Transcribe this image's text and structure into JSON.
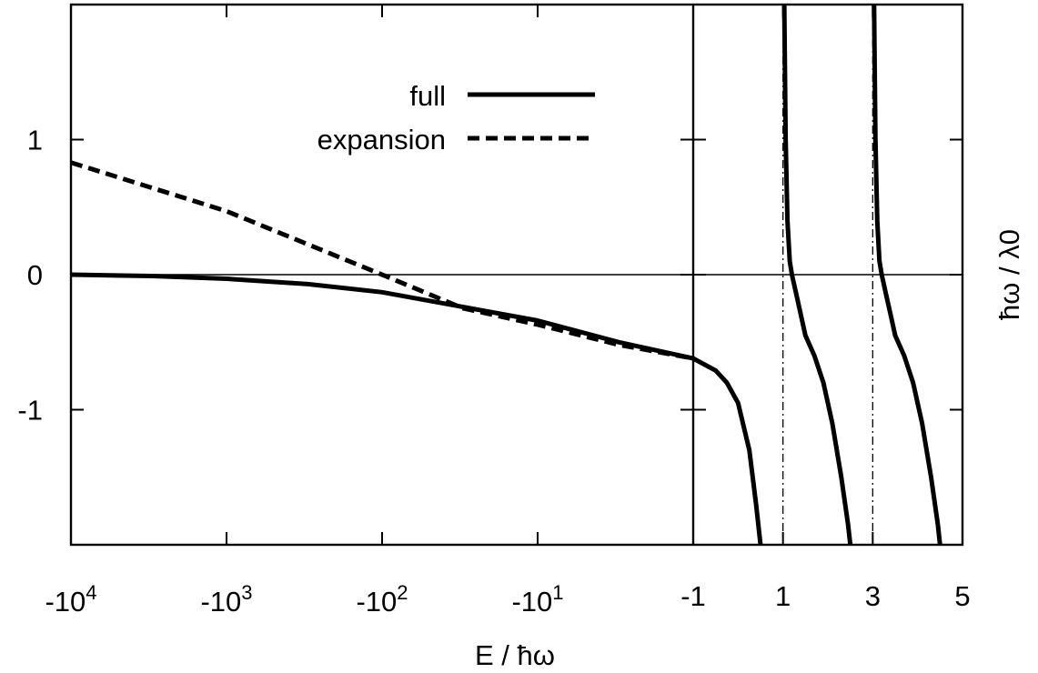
{
  "chart_data": {
    "type": "line",
    "xlabel": "E / ħω",
    "ylabel": "ħω / λ0",
    "ylim": [
      -2,
      2
    ],
    "x_axis_scale": "log-magnitude for negative E (left segment), linear for -1 to 5 (right segment)",
    "left_segment": {
      "xlim": [
        -10000,
        -1
      ],
      "xticks": [
        {
          "value": -10000,
          "base": "-10",
          "exp": "4"
        },
        {
          "value": -1000,
          "base": "-10",
          "exp": "3"
        },
        {
          "value": -100,
          "base": "-10",
          "exp": "2"
        },
        {
          "value": -10,
          "base": "-10",
          "exp": "1"
        }
      ]
    },
    "right_segment": {
      "xlim": [
        -1,
        5
      ],
      "xticks": [
        {
          "value": -1,
          "label": "-1"
        },
        {
          "value": 1,
          "label": "1"
        },
        {
          "value": 3,
          "label": "3"
        },
        {
          "value": 5,
          "label": "5"
        }
      ],
      "dashdot_lines_at_x": [
        1,
        3
      ]
    },
    "yticks": [
      {
        "value": 1,
        "label": "1"
      },
      {
        "value": 0,
        "label": "0"
      },
      {
        "value": -1,
        "label": "-1"
      }
    ],
    "zero_line": true,
    "legend": {
      "placement": "top-center"
    },
    "series": [
      {
        "name": "full",
        "style": "solid",
        "left_points": [
          [
            -10000,
            0.0
          ],
          [
            -3000,
            -0.01
          ],
          [
            -1000,
            -0.03
          ],
          [
            -300,
            -0.07
          ],
          [
            -100,
            -0.13
          ],
          [
            -30,
            -0.24
          ],
          [
            -10,
            -0.34
          ],
          [
            -3,
            -0.5
          ],
          [
            -1,
            -0.62
          ]
        ],
        "right_branches": [
          [
            [
              -1,
              -0.62
            ],
            [
              -0.5,
              -0.71
            ],
            [
              -0.25,
              -0.8
            ],
            [
              0,
              -0.95
            ],
            [
              0.25,
              -1.3
            ],
            [
              0.4,
              -1.7
            ],
            [
              0.5,
              -2.0
            ]
          ],
          [
            [
              1.03,
              2.0
            ],
            [
              1.06,
              1.0
            ],
            [
              1.1,
              0.4
            ],
            [
              1.15,
              0.1
            ],
            [
              1.2,
              0.0
            ],
            [
              1.3,
              -0.15
            ],
            [
              1.4,
              -0.3
            ],
            [
              1.5,
              -0.45
            ],
            [
              1.7,
              -0.6
            ],
            [
              1.9,
              -0.8
            ],
            [
              2.1,
              -1.1
            ],
            [
              2.3,
              -1.5
            ],
            [
              2.45,
              -1.85
            ],
            [
              2.5,
              -2.0
            ]
          ],
          [
            [
              3.03,
              2.0
            ],
            [
              3.06,
              1.0
            ],
            [
              3.1,
              0.4
            ],
            [
              3.15,
              0.1
            ],
            [
              3.2,
              0.0
            ],
            [
              3.3,
              -0.15
            ],
            [
              3.4,
              -0.3
            ],
            [
              3.5,
              -0.45
            ],
            [
              3.7,
              -0.6
            ],
            [
              3.9,
              -0.8
            ],
            [
              4.1,
              -1.1
            ],
            [
              4.3,
              -1.5
            ],
            [
              4.45,
              -1.85
            ],
            [
              4.5,
              -2.0
            ]
          ]
        ]
      },
      {
        "name": "expansion",
        "style": "dashed",
        "left_points": [
          [
            -10000,
            0.83
          ],
          [
            -1000,
            0.47
          ],
          [
            -100,
            0.0
          ],
          [
            -30,
            -0.25
          ],
          [
            -10,
            -0.37
          ],
          [
            -3,
            -0.52
          ],
          [
            -1,
            -0.62
          ]
        ]
      }
    ]
  }
}
